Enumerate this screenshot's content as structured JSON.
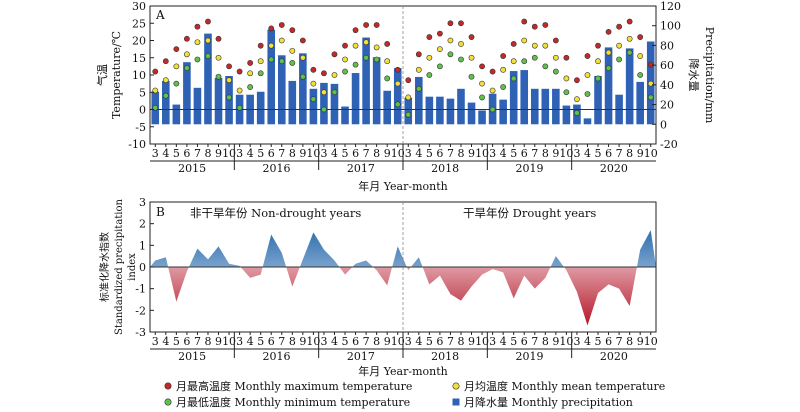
{
  "chart_data": [
    {
      "type": "bar",
      "panel_label": "A",
      "x": [
        "2015-03",
        "2015-04",
        "2015-05",
        "2015-06",
        "2015-07",
        "2015-08",
        "2015-09",
        "2015-10",
        "2016-03",
        "2016-04",
        "2016-05",
        "2016-06",
        "2016-07",
        "2016-08",
        "2016-09",
        "2016-10",
        "2017-03",
        "2017-04",
        "2017-05",
        "2017-06",
        "2017-07",
        "2017-08",
        "2017-09",
        "2017-10",
        "2018-03",
        "2018-04",
        "2018-05",
        "2018-06",
        "2018-07",
        "2018-08",
        "2018-09",
        "2018-10",
        "2019-03",
        "2019-04",
        "2019-05",
        "2019-06",
        "2019-07",
        "2019-08",
        "2019-09",
        "2019-10",
        "2020-03",
        "2020-04",
        "2020-05",
        "2020-06",
        "2020-07",
        "2020-08",
        "2020-09",
        "2020-10"
      ],
      "month_ticks": [
        "3",
        "4",
        "5",
        "6",
        "7",
        "8",
        "9",
        "10"
      ],
      "year_labels": [
        "2015",
        "2016",
        "2017",
        "2018",
        "2019",
        "2020"
      ],
      "xlabel": "年月 Year-month",
      "ylabel_left_cn": "气温",
      "ylabel_left_en": "Temperature/℃",
      "ylabel_right_cn": "降水量",
      "ylabel_right_en": "Precipitation/mm",
      "ylim_left": [
        -10,
        30
      ],
      "yticks_left": [
        -10,
        -5,
        0,
        5,
        10,
        15,
        20,
        25,
        30
      ],
      "ylim_right": [
        -20,
        120
      ],
      "yticks_right": [
        -20,
        0,
        20,
        40,
        60,
        80,
        100,
        120
      ],
      "divider_after": "2017-10",
      "bars": {
        "name": "月降水量 Monthly precipitation",
        "color": "#2f62b5",
        "values": [
          33,
          44,
          20,
          63,
          37,
          92,
          47,
          49,
          30,
          30,
          33,
          96,
          70,
          44,
          72,
          36,
          42,
          41,
          18,
          52,
          88,
          68,
          34,
          57,
          27,
          48,
          28,
          28,
          26,
          36,
          22,
          14,
          31,
          25,
          54,
          55,
          36,
          36,
          36,
          19,
          20,
          6,
          49,
          78,
          30,
          77,
          43,
          84
        ]
      },
      "series": [
        {
          "name": "月最高温度 Monthly maximum temperature",
          "color": "#c22a2a",
          "values": [
            11,
            14,
            17.5,
            20.5,
            24,
            25.5,
            20.5,
            12.5,
            11,
            13.5,
            18.5,
            23.5,
            24.5,
            23,
            20,
            11.5,
            10.5,
            16,
            18.5,
            23,
            24.5,
            24.5,
            19,
            11.5,
            8.5,
            16,
            21,
            22,
            25,
            25,
            21,
            12.5,
            11,
            15.5,
            19,
            25.5,
            24,
            24.5,
            20,
            15,
            8.5,
            15.5,
            18.5,
            22.5,
            24,
            25.5,
            21,
            13
          ]
        },
        {
          "name": "月均温度 Monthly mean temperature",
          "color": "#f2df3a",
          "values": [
            5.5,
            8.5,
            12.5,
            16,
            19.5,
            20,
            15,
            8.5,
            5.5,
            10.5,
            14,
            18.5,
            20,
            17,
            15,
            7.5,
            5,
            10,
            14.5,
            18.5,
            19.5,
            18,
            14,
            7.5,
            3.5,
            11.5,
            15,
            17.5,
            20,
            19,
            15,
            7.5,
            5.5,
            11.5,
            14,
            20,
            18.5,
            18.5,
            15,
            9,
            3,
            10,
            14,
            16.5,
            18.5,
            20.5,
            15.5,
            7.5
          ]
        },
        {
          "name": "月最低温度 Monthly minimum temperature",
          "color": "#5fc04a",
          "values": [
            0.5,
            4,
            7.5,
            12,
            14.5,
            15.5,
            9.5,
            3.5,
            0.5,
            6.5,
            10.5,
            14.5,
            14,
            13.5,
            9.5,
            3,
            0,
            5,
            11,
            13,
            15,
            14.5,
            9,
            1.5,
            -1.5,
            6,
            10,
            12.5,
            16,
            14.5,
            9.5,
            3.5,
            0,
            6.5,
            9,
            14,
            15,
            12.5,
            11,
            5,
            -1,
            4.5,
            9,
            12,
            14.5,
            16.5,
            10,
            3.5
          ]
        }
      ]
    },
    {
      "type": "area",
      "panel_label": "B",
      "xlabel": "年月 Year-month",
      "ylabel_cn": "标准化降水指数",
      "ylabel_en": "Standardized precipitation index",
      "ylim": [
        -3,
        3
      ],
      "yticks": [
        -3,
        -2,
        -1,
        0,
        1,
        2,
        3
      ],
      "annotation_left": "非干旱年份 Non-drought years",
      "annotation_right": "干旱年份 Drought years",
      "positive_color": "#2f6fb0",
      "negative_color": "#b5172b",
      "values": [
        0.3,
        0.45,
        -1.6,
        -0.2,
        0.85,
        0.35,
        0.95,
        0.15,
        0.05,
        -0.5,
        -0.35,
        1.5,
        0.65,
        -0.9,
        0.35,
        1.6,
        0.8,
        0.3,
        -0.35,
        0.15,
        0.3,
        -0.15,
        -0.85,
        0.95,
        -0.15,
        0.45,
        -0.8,
        -0.4,
        -1.25,
        -1.55,
        -0.9,
        -0.35,
        -0.1,
        -0.25,
        -1.45,
        -0.4,
        -1.0,
        -0.5,
        0.5,
        -0.15,
        -1.15,
        -2.7,
        -1.2,
        -0.8,
        -1.0,
        -1.8,
        0.8,
        1.7
      ]
    }
  ],
  "legend": [
    {
      "name": "月最高温度 Monthly maximum temperature",
      "color": "#c22a2a",
      "shape": "circle"
    },
    {
      "name": "月均温度 Monthly mean temperature",
      "color": "#f2df3a",
      "shape": "circle"
    },
    {
      "name": "月最低温度 Monthly minimum temperature",
      "color": "#5fc04a",
      "shape": "circle"
    },
    {
      "name": "月降水量 Monthly precipitation",
      "color": "#2f62b5",
      "shape": "square"
    }
  ]
}
